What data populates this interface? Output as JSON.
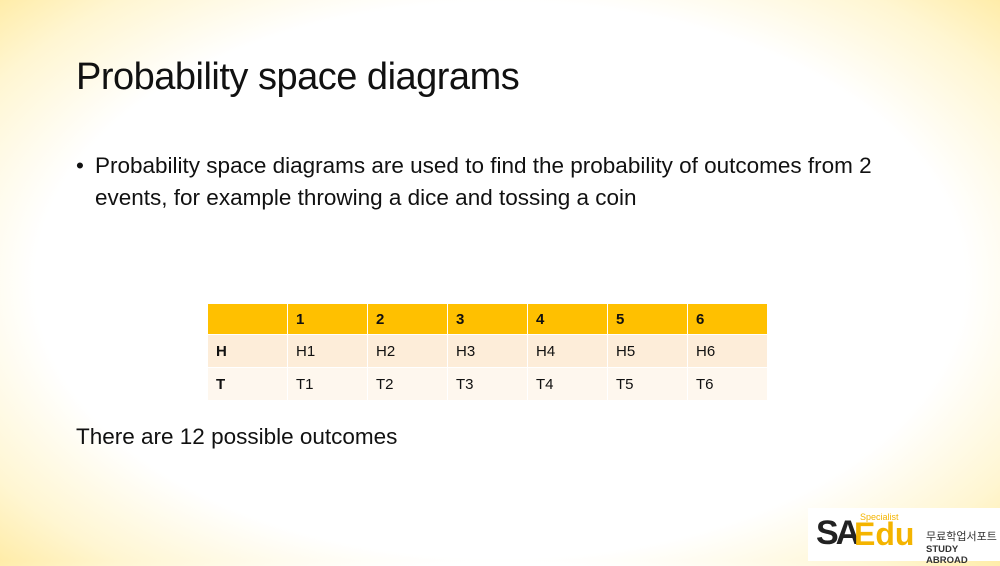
{
  "header": {
    "title": "Probability space diagrams"
  },
  "bullet": "Probability space diagrams are used to find the probability of outcomes from 2 events, for example throwing a dice and tossing a coin",
  "table": {
    "header": [
      "1",
      "2",
      "3",
      "4",
      "5",
      "6"
    ],
    "rows": [
      {
        "label": "H",
        "cells": [
          "H1",
          "H2",
          "H3",
          "H4",
          "H5",
          "H6"
        ]
      },
      {
        "label": "T",
        "cells": [
          "T1",
          "T2",
          "T3",
          "T4",
          "T5",
          "T6"
        ]
      }
    ]
  },
  "conclusion": "There are 12 possible outcomes",
  "logo": {
    "mark_a": "SA",
    "mark_b": "Edu",
    "tag": "Specialist",
    "korean": "무료학업서포트",
    "subtitle": "STUDY ABROAD"
  }
}
